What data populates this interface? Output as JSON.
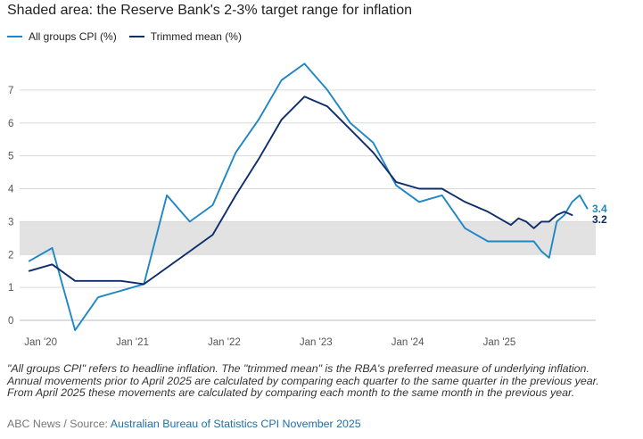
{
  "header": {
    "title": "Shaded area: the Reserve Bank's 2-3% target range for inflation"
  },
  "colors": {
    "all_groups": "#1f87c5",
    "trimmed": "#0d2d6b",
    "band": "#e2e2e2",
    "grid": "#d9d9d9"
  },
  "chart_data": {
    "type": "line",
    "title": "Shaded area: the Reserve Bank's 2-3% target range for inflation",
    "xlabel": "",
    "ylabel": "",
    "ylim": [
      0,
      8
    ],
    "yticks": [
      "0",
      "1",
      "2",
      "3",
      "4",
      "5",
      "6",
      "7"
    ],
    "target_band": [
      2,
      3
    ],
    "x_tick_labels": [
      {
        "label": "Jan '20",
        "t": 2020.0
      },
      {
        "label": "Jan '21",
        "t": 2021.0
      },
      {
        "label": "Jan '22",
        "t": 2022.0
      },
      {
        "label": "Jan '23",
        "t": 2023.0
      },
      {
        "label": "Jan '24",
        "t": 2024.0
      },
      {
        "label": "Jan '25",
        "t": 2025.0
      }
    ],
    "series": [
      {
        "name": "All groups CPI (%)",
        "end_label": "3.4",
        "points": [
          [
            2019.875,
            1.8
          ],
          [
            2020.125,
            2.2
          ],
          [
            2020.375,
            -0.3
          ],
          [
            2020.625,
            0.7
          ],
          [
            2020.875,
            0.9
          ],
          [
            2021.125,
            1.1
          ],
          [
            2021.375,
            3.8
          ],
          [
            2021.625,
            3.0
          ],
          [
            2021.875,
            3.5
          ],
          [
            2022.125,
            5.1
          ],
          [
            2022.375,
            6.1
          ],
          [
            2022.625,
            7.3
          ],
          [
            2022.875,
            7.8
          ],
          [
            2023.125,
            7.0
          ],
          [
            2023.375,
            6.0
          ],
          [
            2023.625,
            5.4
          ],
          [
            2023.875,
            4.1
          ],
          [
            2024.125,
            3.6
          ],
          [
            2024.375,
            3.8
          ],
          [
            2024.625,
            2.8
          ],
          [
            2024.875,
            2.4
          ],
          [
            2025.125,
            2.4
          ],
          [
            2025.375,
            2.4
          ],
          [
            2025.458,
            2.1
          ],
          [
            2025.542,
            1.9
          ],
          [
            2025.625,
            3.0
          ],
          [
            2025.708,
            3.2
          ],
          [
            2025.792,
            3.6
          ],
          [
            2025.875,
            3.8
          ],
          [
            2025.958,
            3.4
          ]
        ]
      },
      {
        "name": "Trimmed mean (%)",
        "end_label": "3.2",
        "points": [
          [
            2019.875,
            1.5
          ],
          [
            2020.125,
            1.7
          ],
          [
            2020.375,
            1.2
          ],
          [
            2020.625,
            1.2
          ],
          [
            2020.875,
            1.2
          ],
          [
            2021.125,
            1.1
          ],
          [
            2021.375,
            1.6
          ],
          [
            2021.625,
            2.1
          ],
          [
            2021.875,
            2.6
          ],
          [
            2022.125,
            3.8
          ],
          [
            2022.375,
            4.9
          ],
          [
            2022.625,
            6.1
          ],
          [
            2022.875,
            6.8
          ],
          [
            2023.125,
            6.5
          ],
          [
            2023.375,
            5.8
          ],
          [
            2023.625,
            5.1
          ],
          [
            2023.875,
            4.2
          ],
          [
            2024.125,
            4.0
          ],
          [
            2024.375,
            4.0
          ],
          [
            2024.625,
            3.6
          ],
          [
            2024.875,
            3.3
          ],
          [
            2025.125,
            2.9
          ],
          [
            2025.208,
            3.1
          ],
          [
            2025.292,
            3.0
          ],
          [
            2025.375,
            2.8
          ],
          [
            2025.458,
            3.0
          ],
          [
            2025.542,
            3.0
          ],
          [
            2025.625,
            3.2
          ],
          [
            2025.708,
            3.3
          ],
          [
            2025.792,
            3.2
          ]
        ]
      }
    ]
  },
  "notes": {
    "text": "\"All groups CPI\" refers to headline inflation. The \"trimmed mean\" is the RBA's preferred measure of underlying inflation. Annual movements prior to April 2025 are calculated by comparing each quarter to the same quarter in the previous year. From April 2025 these movements are calculated by comparing each month to the same month in the previous year."
  },
  "footer": {
    "prefix": "ABC News / Source: ",
    "source_link": "Australian Bureau of Statistics CPI November 2025"
  }
}
